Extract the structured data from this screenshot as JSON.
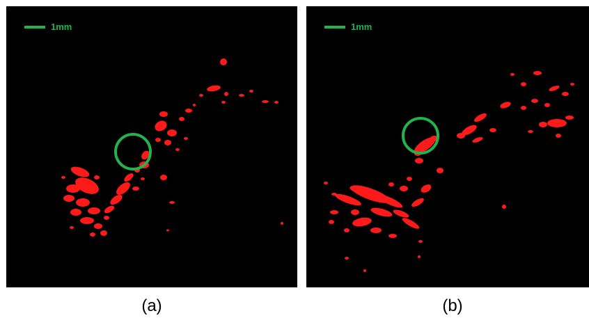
{
  "colors": {
    "panel_background": "#000000",
    "signal": "#ff1a1a",
    "annotation": "#22b34f"
  },
  "panels": [
    {
      "id": "a",
      "caption": "(a)",
      "scale_bar_label": "1mm",
      "has_highlight_circle": true
    },
    {
      "id": "b",
      "caption": "(b)",
      "scale_bar_label": "1mm",
      "has_highlight_circle": true
    }
  ]
}
